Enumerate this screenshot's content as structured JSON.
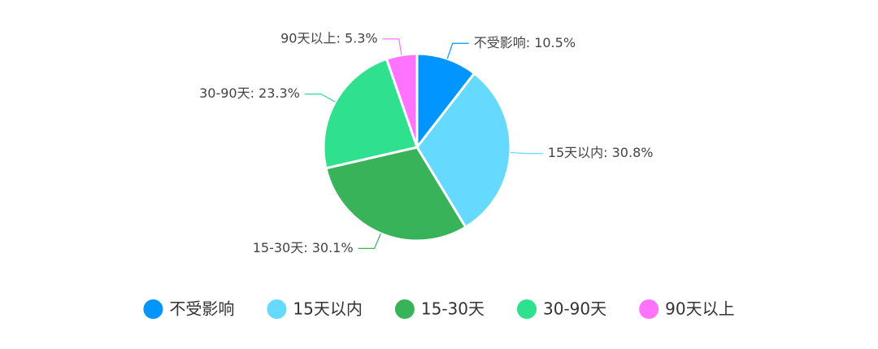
{
  "chart_data": {
    "type": "pie",
    "title": "",
    "legend_position": "bottom",
    "slices": [
      {
        "name": "不受影响",
        "value": 10.5,
        "label": "不受影响: 10.5%",
        "color": "#0095ff"
      },
      {
        "name": "15天以内",
        "value": 30.8,
        "label": "15天以内: 30.8%",
        "color": "#66d9ff"
      },
      {
        "name": "15-30天",
        "value": 30.1,
        "label": "15-30天: 30.1%",
        "color": "#39b35a"
      },
      {
        "name": "30-90天",
        "value": 23.3,
        "label": "30-90天: 23.3%",
        "color": "#2fe08f"
      },
      {
        "name": "90天以上",
        "value": 5.3,
        "label": "90天以上: 5.3%",
        "color": "#ff73ff"
      }
    ]
  }
}
